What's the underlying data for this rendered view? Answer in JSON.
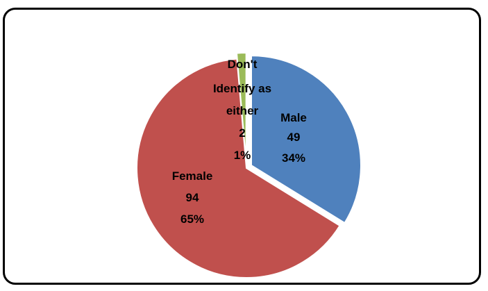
{
  "chart_data": {
    "type": "pie",
    "title": "",
    "slices": [
      {
        "category": "Male",
        "count_label": "49",
        "percent_label": "34%",
        "value": 49,
        "percent": 34,
        "color": "#4f81bd",
        "exploded": true
      },
      {
        "category": "Female",
        "count_label": "94",
        "percent_label": "65%",
        "value": 94,
        "percent": 65,
        "color": "#c0504d",
        "exploded": false
      },
      {
        "category": "Don't Identify as either",
        "category_lines": [
          "Don't",
          "Identify as",
          "either"
        ],
        "count_label": "2",
        "percent_label": "1%",
        "value": 2,
        "percent": 1,
        "color": "#9bbb59",
        "exploded": true
      }
    ],
    "legend": "none",
    "border_color": "#000000"
  }
}
